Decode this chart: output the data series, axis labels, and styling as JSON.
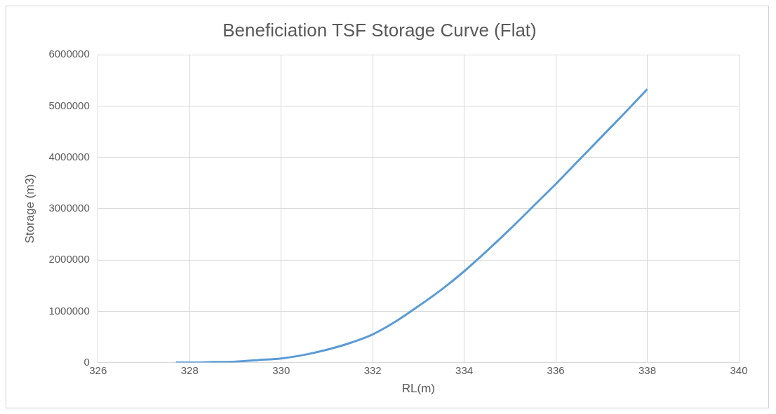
{
  "chart_data": {
    "type": "line",
    "title": "Beneficiation TSF Storage Curve (Flat)",
    "xlabel": "RL(m)",
    "ylabel": "Storage (m3)",
    "x": [
      327.7,
      328,
      328.5,
      329,
      329.5,
      330,
      330.5,
      331,
      331.5,
      332,
      332.5,
      333,
      333.5,
      334,
      334.5,
      335,
      335.5,
      336,
      336.5,
      337,
      337.5,
      338
    ],
    "series": [
      {
        "color": "#5b9bd5",
        "values": [
          0,
          0,
          10000,
          20000,
          50000,
          80000,
          150000,
          250000,
          380000,
          550000,
          800000,
          1100000,
          1420000,
          1780000,
          2180000,
          2600000,
          3040000,
          3480000,
          3940000,
          4400000,
          4860000,
          5330000
        ]
      }
    ],
    "xlim": [
      326,
      340
    ],
    "xticks": [
      326,
      328,
      330,
      332,
      334,
      336,
      338,
      340
    ],
    "ylim": [
      0,
      6000000
    ],
    "yticks": [
      0,
      1000000,
      2000000,
      3000000,
      4000000,
      5000000,
      6000000
    ],
    "grid": true,
    "legend": false,
    "marker": "none",
    "line_style": "solid"
  }
}
